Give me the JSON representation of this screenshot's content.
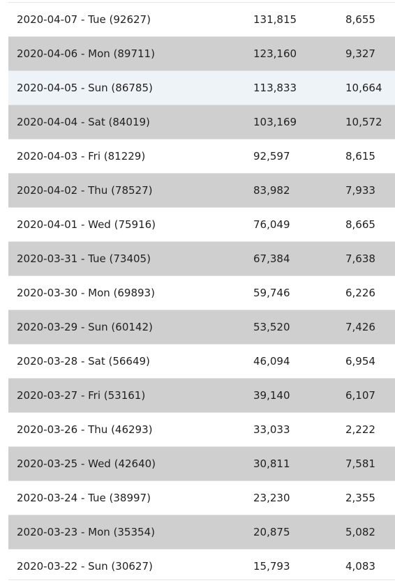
{
  "rows": [
    {
      "date": "2020-04-07 - Tue (92627)",
      "total": "131,815",
      "new": "8,655"
    },
    {
      "date": "2020-04-06 - Mon (89711)",
      "total": "123,160",
      "new": "9,327"
    },
    {
      "date": "2020-04-05 - Sun (86785)",
      "total": "113,833",
      "new": "10,664"
    },
    {
      "date": "2020-04-04 - Sat (84019)",
      "total": "103,169",
      "new": "10,572"
    },
    {
      "date": "2020-04-03 - Fri (81229)",
      "total": "92,597",
      "new": "8,615"
    },
    {
      "date": "2020-04-02 - Thu (78527)",
      "total": "83,982",
      "new": "7,933"
    },
    {
      "date": "2020-04-01 - Wed (75916)",
      "total": "76,049",
      "new": "8,665"
    },
    {
      "date": "2020-03-31 - Tue (73405)",
      "total": "67,384",
      "new": "7,638"
    },
    {
      "date": "2020-03-30 - Mon (69893)",
      "total": "59,746",
      "new": "6,226"
    },
    {
      "date": "2020-03-29 - Sun (60142)",
      "total": "53,520",
      "new": "7,426"
    },
    {
      "date": "2020-03-28 - Sat (56649)",
      "total": "46,094",
      "new": "6,954"
    },
    {
      "date": "2020-03-27 - Fri (53161)",
      "total": "39,140",
      "new": "6,107"
    },
    {
      "date": "2020-03-26 - Thu (46293)",
      "total": "33,033",
      "new": "2,222"
    },
    {
      "date": "2020-03-25 - Wed (42640)",
      "total": "30,811",
      "new": "7,581"
    },
    {
      "date": "2020-03-24 - Tue (38997)",
      "total": "23,230",
      "new": "2,355"
    },
    {
      "date": "2020-03-23 - Mon (35354)",
      "total": "20,875",
      "new": "5,082"
    },
    {
      "date": "2020-03-22 - Sun (30627)",
      "total": "15,793",
      "new": "4,083"
    }
  ],
  "colors": {
    "row_alt": "#cfcfcf",
    "row_highlight": "#eef3f8",
    "text": "#1f1f1f"
  }
}
